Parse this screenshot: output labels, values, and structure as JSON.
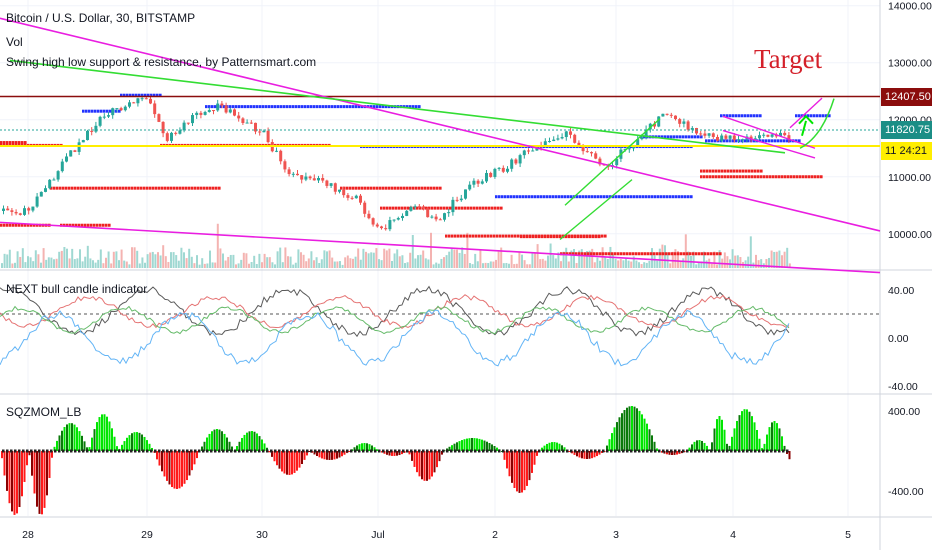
{
  "header": {
    "symbol_title": "Bitcoin / U.S. Dollar, 30, BITSTAMP",
    "volume_label": "Vol",
    "indicator_label": "Swing high low support & resistance, by Patternsmart.com"
  },
  "annotation": {
    "target_text": "Target"
  },
  "price_tags": {
    "resistance": "12407.50",
    "current_price": "11820.75",
    "timer_prefix": "11",
    "timer": "24:21"
  },
  "colors": {
    "up": "#26a69a",
    "down": "#ef5350",
    "bright_green": "#00e600",
    "bright_red": "#ff1a1a",
    "magenta": "#e91ee0",
    "trend_green": "#33dd33",
    "resistance_line": "#8b0d0d",
    "support_line": "#ffee00",
    "blue_dots": "#2233ff",
    "red_dots": "#ee2222",
    "target_text": "#d4202a"
  },
  "chart_data": [
    {
      "type": "candlestick",
      "title": "Bitcoin / U.S. Dollar, 30, BITSTAMP",
      "x_ticks": [
        "28",
        "29",
        "30",
        "Jul",
        "2",
        "3",
        "4",
        "5"
      ],
      "y_ticks": [
        "14000.00",
        "13000.00",
        "12000.00",
        "11000.00",
        "10000.00"
      ],
      "ylim": [
        9400,
        14100
      ],
      "close_path": [
        [
          0,
          10400
        ],
        [
          0.3,
          11300
        ],
        [
          0.6,
          12050
        ],
        [
          1,
          12400
        ],
        [
          1.15,
          11650
        ],
        [
          1.4,
          12100
        ],
        [
          1.6,
          12250
        ],
        [
          1.9,
          11900
        ],
        [
          2,
          11750
        ],
        [
          2.2,
          11100
        ],
        [
          2.5,
          10900
        ],
        [
          2.8,
          10600
        ],
        [
          3,
          10050
        ],
        [
          3.3,
          10500
        ],
        [
          3.5,
          10250
        ],
        [
          3.8,
          10900
        ],
        [
          4.1,
          11200
        ],
        [
          4.3,
          11500
        ],
        [
          4.6,
          11750
        ],
        [
          4.9,
          11150
        ],
        [
          5.1,
          11550
        ],
        [
          5.4,
          12100
        ],
        [
          5.7,
          11750
        ],
        [
          5.85,
          11700
        ]
      ],
      "resistance_level": 12407.5,
      "support_level": 11540,
      "current_price": 11820.75,
      "series": [
        {
          "name": "Vol"
        }
      ]
    },
    {
      "type": "line",
      "title": "NEXT bull candle indicator",
      "y_ticks": [
        "40.00",
        "0.00",
        "-40.00"
      ],
      "ylim": [
        -45,
        55
      ],
      "reference_line": 20
    },
    {
      "type": "bar",
      "title": "SQZMOM_LB",
      "y_ticks": [
        "400.00",
        "-400.00"
      ],
      "ylim": [
        -650,
        550
      ],
      "waves": [
        [
          0.0,
          0.2,
          -640
        ],
        [
          0.2,
          0.5,
          280
        ],
        [
          0.5,
          0.75,
          370
        ],
        [
          0.75,
          1.05,
          190
        ],
        [
          1.05,
          1.45,
          -380
        ],
        [
          1.45,
          1.75,
          220
        ],
        [
          1.75,
          2.05,
          200
        ],
        [
          2.05,
          2.4,
          -240
        ],
        [
          2.4,
          2.75,
          -90
        ],
        [
          2.75,
          3.0,
          80
        ],
        [
          3.0,
          3.25,
          -50
        ],
        [
          3.25,
          3.55,
          -300
        ],
        [
          3.55,
          4.05,
          130
        ],
        [
          4.05,
          4.35,
          -420
        ],
        [
          4.35,
          4.6,
          90
        ],
        [
          4.6,
          4.9,
          -80
        ],
        [
          4.9,
          5.35,
          450
        ],
        [
          5.35,
          5.6,
          -40
        ],
        [
          5.6,
          5.8,
          110
        ],
        [
          5.8,
          5.95,
          350
        ],
        [
          5.95,
          6.25,
          420
        ],
        [
          6.25,
          6.45,
          300
        ],
        [
          6.45,
          6.6,
          -130
        ]
      ]
    }
  ]
}
